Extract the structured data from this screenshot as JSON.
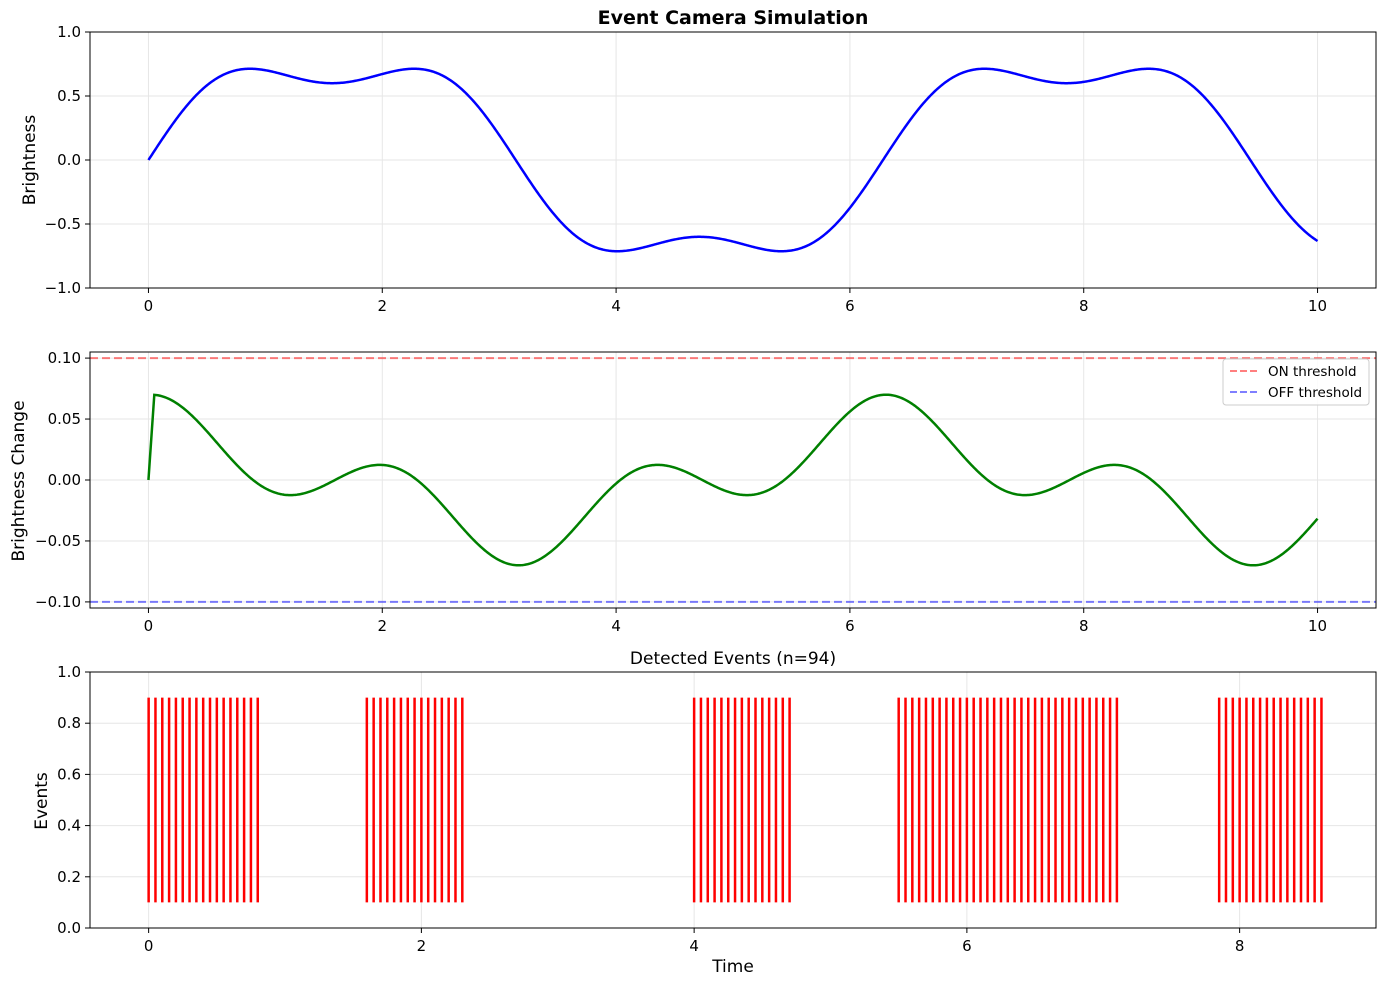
{
  "chart_data": [
    {
      "type": "line",
      "title": "Event Camera Simulation",
      "xlabel": "",
      "ylabel": "Brightness",
      "xlim": [
        -0.5,
        10.5
      ],
      "ylim": [
        -1.0,
        1.0
      ],
      "xticks": [
        "0",
        "2",
        "4",
        "6",
        "8",
        "10"
      ],
      "yticks": [
        "−1.0",
        "−0.5",
        "0.0",
        "0.5",
        "1.0"
      ],
      "grid": true,
      "series": [
        {
          "formula": "0.8*sin(t) + 0.2*sin(3t)",
          "t_range": [
            0,
            10
          ],
          "color": "#0000ff"
        }
      ]
    },
    {
      "type": "line",
      "title": "",
      "xlabel": "",
      "ylabel": "Brightness Change",
      "xlim": [
        -0.5,
        10.5
      ],
      "ylim": [
        -0.105,
        0.105
      ],
      "xticks": [
        "0",
        "2",
        "4",
        "6",
        "8",
        "10"
      ],
      "yticks": [
        "−0.10",
        "−0.05",
        "0.00",
        "0.05",
        "0.10"
      ],
      "grid": true,
      "legend_position": "top-right",
      "series": [
        {
          "formula": "first difference of brightness, step 0.05",
          "color": "#008000"
        },
        {
          "name": "ON threshold",
          "y": 0.1,
          "style": "dashed",
          "color": "#ff0000"
        },
        {
          "name": "OFF threshold",
          "y": -0.1,
          "style": "dashed",
          "color": "#0000ff"
        }
      ]
    },
    {
      "type": "event",
      "title": "Detected Events (n=94)",
      "xlabel": "Time",
      "ylabel": "Events",
      "xlim": [
        -0.43,
        9.0
      ],
      "ylim": [
        0.0,
        1.0
      ],
      "xticks": [
        "0",
        "2",
        "4",
        "6",
        "8"
      ],
      "yticks": [
        "0.0",
        "0.2",
        "0.4",
        "0.6",
        "0.8",
        "1.0"
      ],
      "grid": true,
      "line_span": [
        0.1,
        0.9
      ],
      "color": "#ff0000",
      "events": {
        "step": 0.05,
        "clusters": [
          {
            "start": 0.0,
            "end": 0.8
          },
          {
            "start": 1.6,
            "end": 2.3
          },
          {
            "start": 4.0,
            "end": 4.7
          },
          {
            "start": 5.5,
            "end": 7.1
          },
          {
            "start": 7.85,
            "end": 8.6
          }
        ]
      }
    }
  ]
}
